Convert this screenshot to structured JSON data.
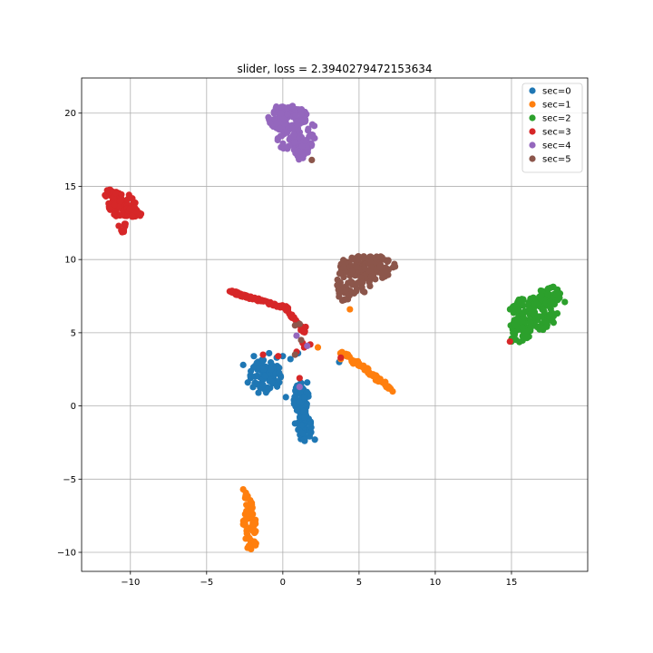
{
  "chart_data": {
    "type": "scatter",
    "title": "slider, loss = 2.3940279472153634",
    "xlabel": "",
    "ylabel": "",
    "xlim": [
      -13.2,
      20.0
    ],
    "ylim": [
      -11.3,
      22.4
    ],
    "grid": true,
    "legend_position": "top-right",
    "x_ticks": [
      -10,
      -5,
      0,
      5,
      10,
      15
    ],
    "y_ticks": [
      -10,
      -5,
      0,
      5,
      10,
      15,
      20
    ],
    "x_tick_labels": [
      "−10",
      "−5",
      "0",
      "5",
      "10",
      "15"
    ],
    "y_tick_labels": [
      "−10",
      "−5",
      "0",
      "5",
      "10",
      "15",
      "20"
    ],
    "series": [
      {
        "name": "sec=0",
        "color": "#1f77b4",
        "blobs": [
          {
            "cx": -1.2,
            "cy": 2.1,
            "rx": 1.1,
            "ry": 1.2,
            "n": 90
          },
          {
            "cx": 1.2,
            "cy": 0.4,
            "rx": 0.5,
            "ry": 1.3,
            "n": 60
          },
          {
            "cx": 1.4,
            "cy": -1.4,
            "rx": 0.5,
            "ry": 1.0,
            "n": 50
          }
        ],
        "points": [
          [
            -0.4,
            3.3
          ],
          [
            0.5,
            3.2
          ],
          [
            0.2,
            0.6
          ],
          [
            3.7,
            3.0
          ],
          [
            1.0,
            3.6
          ],
          [
            -2.6,
            2.8
          ],
          [
            -1.9,
            3.4
          ],
          [
            -0.9,
            3.6
          ],
          [
            0.0,
            3.4
          ],
          [
            1.6,
            1.6
          ],
          [
            2.1,
            -2.3
          ],
          [
            0.8,
            -1.2
          ],
          [
            -2.3,
            1.6
          ],
          [
            -1.6,
            0.9
          ]
        ]
      },
      {
        "name": "sec=1",
        "color": "#ff7f0e",
        "blobs": [
          {
            "cx": -2.3,
            "cy": -6.7,
            "rx": 0.35,
            "ry": 1.1,
            "n": 25
          },
          {
            "cx": -2.2,
            "cy": -8.4,
            "rx": 0.5,
            "ry": 1.2,
            "n": 35
          },
          {
            "cx": -2.1,
            "cy": -9.4,
            "rx": 0.4,
            "ry": 0.4,
            "n": 10
          }
        ],
        "lines": [
          {
            "x0": 3.9,
            "y0": 3.6,
            "x1": 7.2,
            "y1": 1.1,
            "n": 60,
            "w": 0.3
          }
        ],
        "points": [
          [
            2.3,
            4.0
          ],
          [
            4.4,
            6.6
          ],
          [
            3.8,
            3.2
          ],
          [
            4.2,
            3.5
          ],
          [
            -2.6,
            -5.7
          ]
        ]
      },
      {
        "name": "sec=2",
        "color": "#2ca02c",
        "blobs": [
          {
            "cx": 16.5,
            "cy": 6.3,
            "rx": 1.7,
            "ry": 1.2,
            "n": 120
          },
          {
            "cx": 15.6,
            "cy": 5.2,
            "rx": 0.8,
            "ry": 0.9,
            "n": 45
          },
          {
            "cx": 17.5,
            "cy": 7.6,
            "rx": 0.7,
            "ry": 0.6,
            "n": 40
          }
        ],
        "points": [
          [
            15.0,
            4.4
          ],
          [
            15.1,
            5.0
          ],
          [
            18.5,
            7.1
          ]
        ]
      },
      {
        "name": "sec=3",
        "color": "#d62728",
        "blobs": [
          {
            "cx": -10.6,
            "cy": 13.8,
            "rx": 0.9,
            "ry": 0.9,
            "n": 70
          },
          {
            "cx": -11.3,
            "cy": 14.5,
            "rx": 0.4,
            "ry": 0.3,
            "n": 15
          },
          {
            "cx": -9.7,
            "cy": 13.3,
            "rx": 0.5,
            "ry": 0.6,
            "n": 20
          },
          {
            "cx": -10.5,
            "cy": 12.2,
            "rx": 0.3,
            "ry": 0.4,
            "n": 10
          }
        ],
        "lines": [
          {
            "x0": -3.4,
            "y0": 7.8,
            "x1": 0.2,
            "y1": 6.7,
            "n": 60,
            "w": 0.2
          },
          {
            "x0": 0.2,
            "y0": 6.7,
            "x1": 1.4,
            "y1": 5.0,
            "n": 25,
            "w": 0.2
          }
        ],
        "points": [
          [
            1.5,
            5.4
          ],
          [
            1.3,
            4.3
          ],
          [
            1.8,
            4.2
          ],
          [
            -0.3,
            3.4
          ],
          [
            -1.3,
            3.5
          ],
          [
            1.1,
            1.9
          ],
          [
            3.8,
            3.3
          ],
          [
            14.9,
            4.4
          ],
          [
            1.4,
            4.0
          ],
          [
            0.9,
            3.7
          ]
        ]
      },
      {
        "name": "sec=4",
        "color": "#9467bd",
        "blobs": [
          {
            "cx": 0.3,
            "cy": 19.7,
            "rx": 1.3,
            "ry": 0.9,
            "n": 100
          },
          {
            "cx": 1.3,
            "cy": 18.5,
            "rx": 0.9,
            "ry": 1.2,
            "n": 60
          },
          {
            "cx": 0.2,
            "cy": 18.1,
            "rx": 0.6,
            "ry": 0.6,
            "n": 20
          },
          {
            "cx": 1.2,
            "cy": 17.3,
            "rx": 0.6,
            "ry": 0.5,
            "n": 20
          }
        ],
        "points": [
          [
            1.6,
            4.1
          ],
          [
            1.1,
            1.3
          ],
          [
            0.9,
            4.8
          ]
        ]
      },
      {
        "name": "sec=5",
        "color": "#8c564b",
        "blobs": [
          {
            "cx": 5.5,
            "cy": 9.6,
            "rx": 1.9,
            "ry": 0.7,
            "n": 90
          },
          {
            "cx": 4.7,
            "cy": 8.6,
            "rx": 1.2,
            "ry": 1.1,
            "n": 60
          },
          {
            "cx": 4.1,
            "cy": 7.7,
            "rx": 0.5,
            "ry": 0.6,
            "n": 20
          },
          {
            "cx": 6.3,
            "cy": 9.1,
            "rx": 0.7,
            "ry": 0.5,
            "n": 20
          }
        ],
        "points": [
          [
            1.9,
            16.8
          ],
          [
            0.8,
            5.5
          ],
          [
            1.1,
            5.6
          ],
          [
            1.2,
            4.5
          ],
          [
            0.8,
            3.5
          ],
          [
            3.6,
            8.2
          ]
        ]
      }
    ]
  }
}
